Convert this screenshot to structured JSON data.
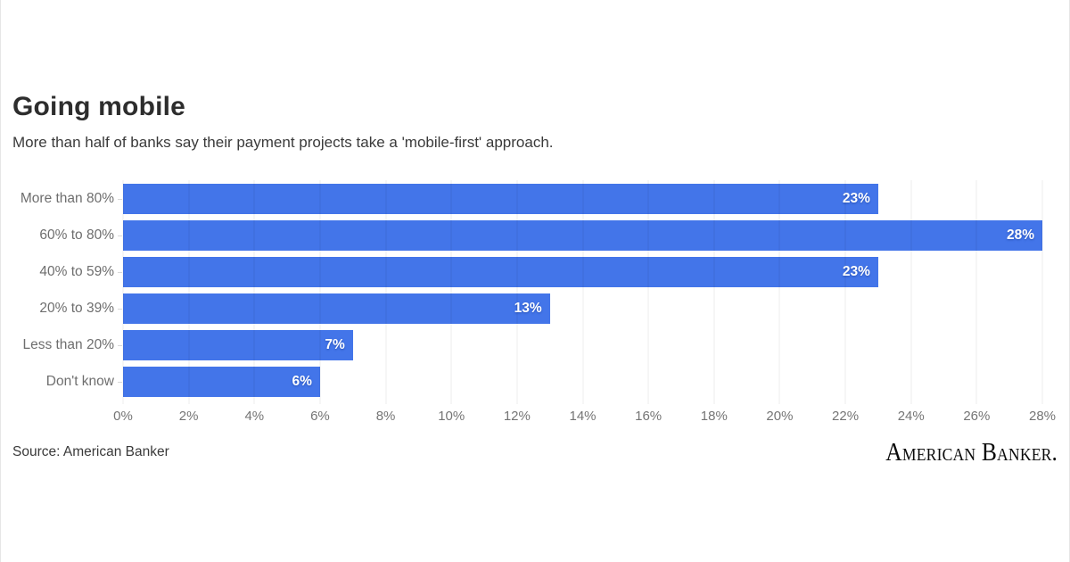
{
  "header": {
    "title": "Going mobile",
    "subtitle": "More than half of banks say their payment projects take a 'mobile-first' approach."
  },
  "chart_data": {
    "type": "bar",
    "orientation": "horizontal",
    "title": "Going mobile",
    "subtitle": "More than half of banks say their payment projects take a 'mobile-first' approach.",
    "categories": [
      "More than 80%",
      "60% to 80%",
      "40% to 59%",
      "20% to 39%",
      "Less than 20%",
      "Don't know"
    ],
    "values": [
      23,
      28,
      23,
      13,
      7,
      6
    ],
    "value_labels": [
      "23%",
      "28%",
      "23%",
      "13%",
      "7%",
      "6%"
    ],
    "xlim": [
      0,
      28
    ],
    "x_ticks": [
      0,
      2,
      4,
      6,
      8,
      10,
      12,
      14,
      16,
      18,
      20,
      22,
      24,
      26,
      28
    ],
    "x_tick_labels": [
      "0%",
      "2%",
      "4%",
      "6%",
      "8%",
      "10%",
      "12%",
      "14%",
      "16%",
      "18%",
      "20%",
      "22%",
      "24%",
      "26%",
      "28%"
    ],
    "bar_color": "#4375e9",
    "value_label_color": "#ffffff",
    "grid": true,
    "legend": "none"
  },
  "footer": {
    "source": "Source: American Banker",
    "logo": "American Banker."
  }
}
